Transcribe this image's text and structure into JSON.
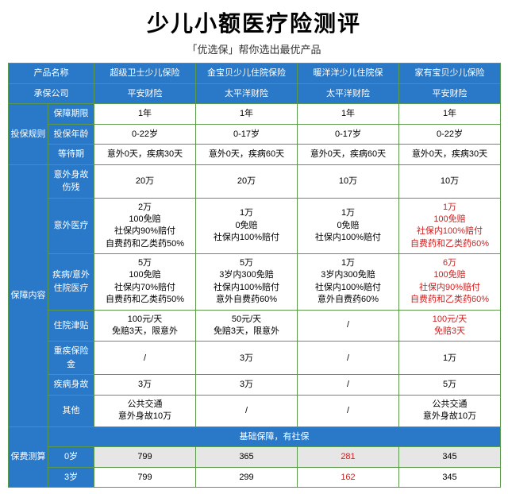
{
  "title": "少儿小额医疗险测评",
  "subtitle": "「优选保」帮你选出最优产品",
  "headers": {
    "product": "产品名称",
    "company": "承保公司",
    "insure_rules": "投保规则",
    "coverage": "保障内容",
    "premium": "保费测算",
    "term": "保障期限",
    "age": "投保年龄",
    "wait": "等待期",
    "accident_death": "意外身故\n伤残",
    "accident_med": "意外医疗",
    "hosp_med": "疾病/意外\n住院医疗",
    "hosp_allow": "住院津贴",
    "critical": "重疾保险金",
    "disease_death": "疾病身故",
    "other": "其他",
    "note": "基础保障，有社保",
    "age0": "0岁",
    "age3": "3岁"
  },
  "products": [
    "超级卫士少儿保险",
    "金宝贝少儿住院保险",
    "暖洋洋少儿住院保",
    "家有宝贝少儿保险"
  ],
  "companies": [
    "平安财险",
    "太平洋财险",
    "太平洋财险",
    "平安财险"
  ],
  "rows": {
    "term": [
      "1年",
      "1年",
      "1年",
      "1年"
    ],
    "age": [
      "0-22岁",
      "0-17岁",
      "0-17岁",
      "0-22岁"
    ],
    "wait": [
      "意外0天，疾病30天",
      "意外0天，疾病60天",
      "意外0天，疾病60天",
      "意外0天，疾病30天"
    ],
    "accident_death": [
      "20万",
      "20万",
      "10万",
      "10万"
    ],
    "accident_med": [
      [
        "2万",
        "100免赔",
        "社保内90%赔付",
        "自费药和乙类药50%"
      ],
      [
        "1万",
        "0免赔",
        "社保内100%赔付"
      ],
      [
        "1万",
        "0免赔",
        "社保内100%赔付"
      ],
      [
        "1万",
        "100免赔",
        "社保内100%赔付",
        "自费药和乙类药60%"
      ]
    ],
    "hosp_med": [
      [
        "5万",
        "100免赔",
        "社保内70%赔付",
        "自费药和乙类药50%"
      ],
      [
        "5万",
        "3岁内300免赔",
        "社保内100%赔付",
        "意外自费药60%"
      ],
      [
        "1万",
        "3岁内300免赔",
        "社保内100%赔付",
        "意外自费药60%"
      ],
      [
        "6万",
        "100免赔",
        "社保内90%赔付",
        "自费药和乙类药60%"
      ]
    ],
    "hosp_allow": [
      [
        "100元/天",
        "免赔3天，限意外"
      ],
      [
        "50元/天",
        "免赔3天，限意外"
      ],
      [
        "/"
      ],
      [
        "100元/天",
        "免赔3天"
      ]
    ],
    "critical": [
      "/",
      "3万",
      "/",
      "1万"
    ],
    "disease_death": [
      "3万",
      "3万",
      "/",
      "5万"
    ],
    "other": [
      [
        "公共交通",
        "意外身故10万"
      ],
      [
        "/"
      ],
      [
        "/"
      ],
      [
        "公共交通",
        "意外身故10万"
      ]
    ],
    "age0": [
      "799",
      "365",
      "281",
      "345"
    ],
    "age3": [
      "799",
      "299",
      "162",
      "345"
    ]
  },
  "red_cols": {
    "accident_med": 3,
    "hosp_med": 3,
    "hosp_allow": 3,
    "age0": 2,
    "age3": 2
  }
}
